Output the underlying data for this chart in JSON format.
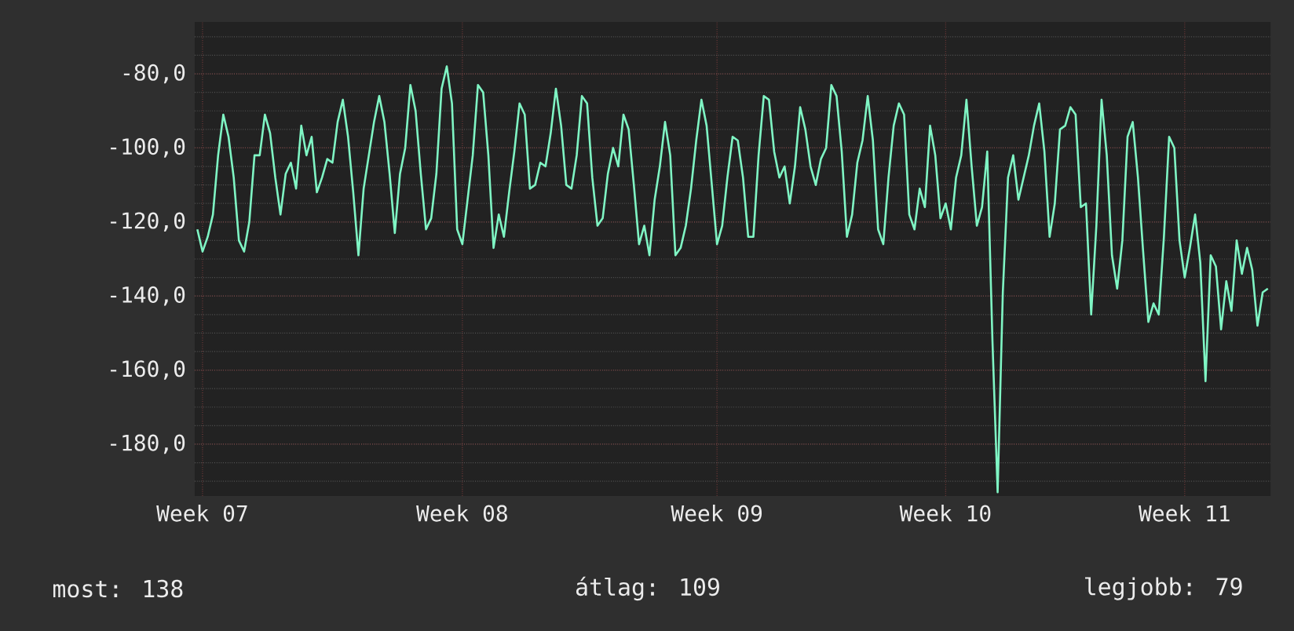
{
  "chart_data": {
    "type": "line",
    "marker": "none",
    "line_style": "solid",
    "grid": true,
    "annotations": [
      "most: 138",
      "átlag: 109",
      "legjobb: 79"
    ],
    "categories": [
      null,
      "Week 07",
      null,
      null,
      null,
      null,
      null,
      null,
      null,
      null,
      null,
      null,
      null,
      null,
      null,
      null,
      null,
      null,
      null,
      null,
      null,
      null,
      null,
      null,
      null,
      null,
      null,
      null,
      null,
      null,
      null,
      null,
      null,
      null,
      null,
      null,
      null,
      null,
      null,
      null,
      null,
      null,
      null,
      null,
      null,
      null,
      null,
      null,
      null,
      null,
      null,
      "Week 08",
      null,
      null,
      null,
      null,
      null,
      null,
      null,
      null,
      null,
      null,
      null,
      null,
      null,
      null,
      null,
      null,
      null,
      null,
      null,
      null,
      null,
      null,
      null,
      null,
      null,
      null,
      null,
      null,
      null,
      null,
      null,
      null,
      null,
      null,
      null,
      null,
      null,
      null,
      null,
      null,
      null,
      null,
      null,
      null,
      null,
      null,
      null,
      null,
      "Week 09",
      null,
      null,
      null,
      null,
      null,
      null,
      null,
      null,
      null,
      null,
      null,
      null,
      null,
      null,
      null,
      null,
      null,
      null,
      null,
      null,
      null,
      null,
      null,
      null,
      null,
      null,
      null,
      null,
      null,
      null,
      null,
      null,
      null,
      null,
      null,
      null,
      null,
      null,
      null,
      null,
      null,
      null,
      null,
      "Week 10",
      null,
      null,
      null,
      null,
      null,
      null,
      null,
      null,
      null,
      null,
      null,
      null,
      null,
      null,
      null,
      null,
      null,
      null,
      null,
      null,
      null,
      null,
      null,
      null,
      null,
      null,
      null,
      null,
      null,
      null,
      null,
      null,
      null,
      null,
      null,
      null,
      null,
      null,
      null,
      null,
      null,
      null,
      null,
      null,
      null,
      "Week 11",
      null,
      null,
      null,
      null,
      null,
      null,
      null,
      null,
      null,
      null,
      null,
      null,
      null,
      null,
      null,
      null
    ],
    "ylim": [
      -194,
      -66
    ],
    "yticks": [
      {
        "value": -180,
        "label": "-180,0"
      },
      {
        "value": -160,
        "label": "-160,0"
      },
      {
        "value": -140,
        "label": "-140,0"
      },
      {
        "value": -120,
        "label": "-120,0"
      },
      {
        "value": -100,
        "label": "-100,0"
      },
      {
        "value": -80,
        "label": "-80,0"
      }
    ],
    "series": [
      {
        "color": "#7ff5c4",
        "values": [
          -122,
          -128,
          -124,
          -118,
          -102,
          -91,
          -97,
          -108,
          -125,
          -128,
          -120,
          -102,
          -102,
          -91,
          -96,
          -108,
          -118,
          -107,
          -104,
          -111,
          -94,
          -102,
          -97,
          -112,
          -108,
          -103,
          -104,
          -93,
          -87,
          -97,
          -112,
          -129,
          -111,
          -102,
          -93,
          -86,
          -93,
          -107,
          -123,
          -107,
          -100,
          -83,
          -90,
          -107,
          -122,
          -119,
          -107,
          -84,
          -78,
          -88,
          -122,
          -126,
          -114,
          -102,
          -83,
          -85,
          -102,
          -127,
          -118,
          -124,
          -112,
          -101,
          -88,
          -91,
          -111,
          -110,
          -104,
          -105,
          -96,
          -84,
          -94,
          -110,
          -111,
          -102,
          -86,
          -88,
          -108,
          -121,
          -119,
          -107,
          -100,
          -105,
          -91,
          -95,
          -110,
          -126,
          -121,
          -129,
          -114,
          -105,
          -93,
          -102,
          -129,
          -127,
          -121,
          -111,
          -98,
          -87,
          -94,
          -110,
          -126,
          -121,
          -108,
          -97,
          -98,
          -108,
          -124,
          -124,
          -102,
          -86,
          -87,
          -101,
          -108,
          -105,
          -115,
          -105,
          -89,
          -95,
          -105,
          -110,
          -103,
          -100,
          -83,
          -86,
          -101,
          -124,
          -118,
          -104,
          -98,
          -86,
          -98,
          -122,
          -126,
          -108,
          -94,
          -88,
          -91,
          -118,
          -122,
          -111,
          -116,
          -94,
          -102,
          -119,
          -115,
          -122,
          -108,
          -102,
          -87,
          -105,
          -121,
          -116,
          -101,
          -152,
          -193,
          -139,
          -108,
          -102,
          -114,
          -108,
          -102,
          -94,
          -88,
          -101,
          -124,
          -115,
          -95,
          -94,
          -89,
          -91,
          -116,
          -115,
          -145,
          -121,
          -87,
          -102,
          -129,
          -138,
          -125,
          -97,
          -93,
          -108,
          -128,
          -147,
          -142,
          -145,
          -124,
          -97,
          -100,
          -125,
          -135,
          -127,
          -118,
          -131,
          -163,
          -129,
          -132,
          -149,
          -136,
          -144,
          -125,
          -134,
          -127,
          -133,
          -148,
          -139,
          -138
        ]
      }
    ]
  }
}
